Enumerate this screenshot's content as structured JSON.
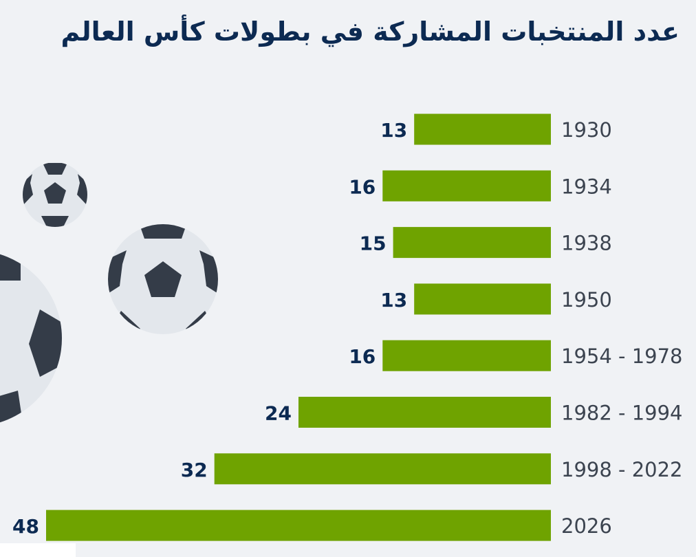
{
  "title": "عدد المنتخبات المشاركة في بطولات كأس العالم",
  "colors": {
    "bar": "#6fa300",
    "value_label": "#0c2a52",
    "category_label": "#3c4450",
    "ball_fill": "#e3e7ec",
    "ball_patch": "#343c48",
    "background": "#f0f2f5"
  },
  "chart_data": {
    "type": "bar",
    "orientation": "horizontal",
    "bar_direction": "right-to-left",
    "title": "عدد المنتخبات المشاركة في بطولات كأس العالم",
    "categories": [
      "1930",
      "1934",
      "1938",
      "1950",
      "1954 - 1978",
      "1982 - 1994",
      "1998 - 2022",
      "2026"
    ],
    "values": [
      13,
      16,
      15,
      13,
      16,
      24,
      32,
      48
    ],
    "xlabel": "",
    "ylabel": "",
    "xlim": [
      0,
      48
    ],
    "grid": false,
    "legend": "none",
    "data_labels": true
  },
  "decorations": [
    "soccer-ball-icon",
    "soccer-ball-icon",
    "soccer-ball-icon"
  ]
}
